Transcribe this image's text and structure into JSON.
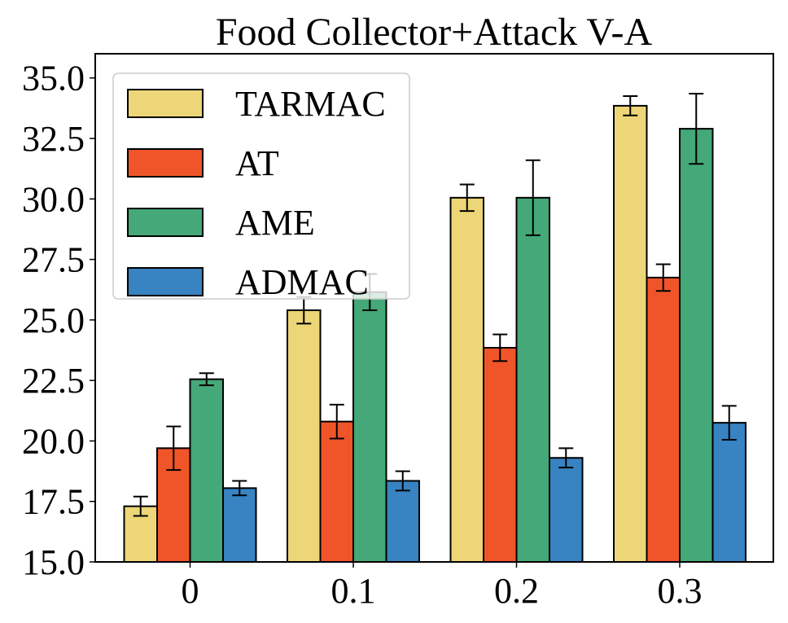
{
  "chart_data": {
    "type": "bar",
    "title": "Food Collector+Attack V-A",
    "xlabel": "",
    "ylabel": "",
    "categories": [
      "0",
      "0.1",
      "0.2",
      "0.3"
    ],
    "ylim": [
      15.0,
      36.0
    ],
    "yticks": [
      "15.0",
      "17.5",
      "20.0",
      "22.5",
      "25.0",
      "27.5",
      "30.0",
      "32.5",
      "35.0"
    ],
    "ytick_values": [
      15.0,
      17.5,
      20.0,
      22.5,
      25.0,
      27.5,
      30.0,
      32.5,
      35.0
    ],
    "legend_position": "top-left",
    "series": [
      {
        "name": "TARMAC",
        "color": "#edd677",
        "values": [
          17.3,
          25.4,
          30.05,
          33.85
        ],
        "errors": [
          0.4,
          0.55,
          0.55,
          0.4
        ]
      },
      {
        "name": "AT",
        "color": "#f05529",
        "values": [
          19.7,
          20.8,
          23.85,
          26.75
        ],
        "errors": [
          0.9,
          0.7,
          0.55,
          0.55
        ]
      },
      {
        "name": "AME",
        "color": "#44a878",
        "values": [
          22.55,
          26.15,
          30.05,
          32.9
        ],
        "errors": [
          0.25,
          0.75,
          1.55,
          1.45
        ]
      },
      {
        "name": "ADMAC",
        "color": "#3883c1",
        "values": [
          18.05,
          18.35,
          19.3,
          20.75
        ],
        "errors": [
          0.3,
          0.4,
          0.4,
          0.7
        ]
      }
    ]
  }
}
